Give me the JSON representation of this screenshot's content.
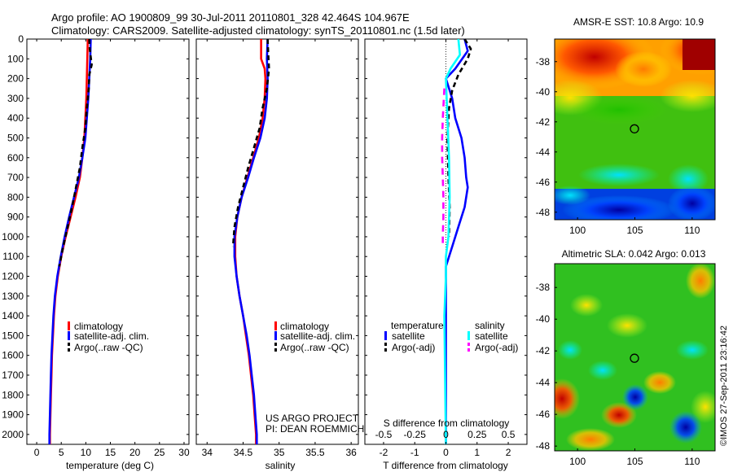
{
  "header": {
    "line1": "Argo profile: AO 1900809_99 30-Jul-2011 20110801_328 42.464S 104.967E",
    "line2": "Climatology: CARS2009. Satellite-adjusted climatology: synTS_20110801.nc (1.5d later)"
  },
  "credits": {
    "project": "US ARGO PROJECT",
    "pi": "PI: DEAN ROEMMICH",
    "stamp": "©IMOS 27-Sep-2011 23:16:42"
  },
  "colors": {
    "climatology": "#ff0000",
    "satellite": "#0000ff",
    "argo": "#000000",
    "salinity_satellite": "#00ffff",
    "salinity_argo": "#ff00ff"
  },
  "chart_data": [
    {
      "type": "line",
      "id": "temperature",
      "xlabel": "temperature (deg C)",
      "xlim": [
        -2,
        31
      ],
      "ylim": [
        0,
        2050
      ],
      "y_reversed": true,
      "xticks": [
        0,
        5,
        10,
        15,
        20,
        25,
        30
      ],
      "yticks": [
        0,
        100,
        200,
        300,
        400,
        500,
        600,
        700,
        800,
        900,
        1000,
        1100,
        1200,
        1300,
        1400,
        1500,
        1600,
        1700,
        1800,
        1900,
        2000
      ],
      "legend": [
        "climatology",
        "satellite-adj. clim.",
        "Argo(..raw -QC)"
      ],
      "series": [
        {
          "name": "climatology",
          "color": "#ff0000",
          "dash": "",
          "points": [
            [
              10.4,
              0
            ],
            [
              10.3,
              100
            ],
            [
              10.2,
              200
            ],
            [
              10.1,
              300
            ],
            [
              9.9,
              400
            ],
            [
              9.7,
              500
            ],
            [
              9.3,
              600
            ],
            [
              8.8,
              700
            ],
            [
              7.9,
              800
            ],
            [
              6.9,
              900
            ],
            [
              5.9,
              1000
            ],
            [
              5.0,
              1100
            ],
            [
              4.3,
              1200
            ],
            [
              3.8,
              1300
            ],
            [
              3.5,
              1400
            ],
            [
              3.3,
              1500
            ],
            [
              3.1,
              1600
            ],
            [
              3.0,
              1700
            ],
            [
              2.9,
              1800
            ],
            [
              2.8,
              1900
            ],
            [
              2.7,
              2000
            ],
            [
              2.7,
              2050
            ]
          ]
        },
        {
          "name": "satellite-adj. clim.",
          "color": "#0000ff",
          "dash": "",
          "points": [
            [
              11.0,
              0
            ],
            [
              10.9,
              100
            ],
            [
              10.7,
              200
            ],
            [
              10.5,
              300
            ],
            [
              10.2,
              400
            ],
            [
              9.9,
              500
            ],
            [
              9.3,
              600
            ],
            [
              8.6,
              700
            ],
            [
              7.6,
              800
            ],
            [
              6.6,
              900
            ],
            [
              5.7,
              1000
            ],
            [
              4.9,
              1100
            ],
            [
              4.2,
              1200
            ],
            [
              3.7,
              1300
            ],
            [
              3.4,
              1400
            ],
            [
              3.2,
              1500
            ],
            [
              3.0,
              1600
            ],
            [
              2.9,
              1700
            ],
            [
              2.8,
              1800
            ],
            [
              2.7,
              1900
            ],
            [
              2.6,
              2000
            ],
            [
              2.6,
              2050
            ]
          ]
        },
        {
          "name": "Argo(..raw -QC)",
          "color": "#000000",
          "dash": "6,4",
          "points": [
            [
              10.7,
              0
            ],
            [
              10.8,
              50
            ],
            [
              11.2,
              130
            ],
            [
              10.7,
              180
            ],
            [
              10.6,
              250
            ],
            [
              10.2,
              350
            ],
            [
              9.9,
              450
            ],
            [
              9.3,
              550
            ],
            [
              8.8,
              650
            ],
            [
              8.0,
              750
            ],
            [
              7.2,
              850
            ],
            [
              6.3,
              950
            ],
            [
              5.4,
              1050
            ],
            [
              4.6,
              1150
            ]
          ]
        }
      ]
    },
    {
      "type": "line",
      "id": "salinity",
      "xlabel": "salinity",
      "xlim": [
        33.85,
        36.1
      ],
      "ylim": [
        0,
        2050
      ],
      "y_reversed": true,
      "xticks": [
        34,
        34.5,
        35,
        35.5,
        36
      ],
      "xticklabels": [
        "34",
        "34.5",
        "35",
        "35.5",
        "36"
      ],
      "legend": [
        "climatology",
        "satellite-adj. clim.",
        "Argo(..raw -QC)"
      ],
      "series": [
        {
          "name": "climatology",
          "color": "#ff0000",
          "dash": "",
          "points": [
            [
              34.75,
              0
            ],
            [
              34.75,
              100
            ],
            [
              34.8,
              150
            ],
            [
              34.81,
              200
            ],
            [
              34.8,
              300
            ],
            [
              34.77,
              400
            ],
            [
              34.72,
              500
            ],
            [
              34.64,
              600
            ],
            [
              34.56,
              700
            ],
            [
              34.48,
              800
            ],
            [
              34.42,
              900
            ],
            [
              34.39,
              1000
            ],
            [
              34.39,
              1100
            ],
            [
              34.41,
              1200
            ],
            [
              34.45,
              1300
            ],
            [
              34.5,
              1400
            ],
            [
              34.54,
              1500
            ],
            [
              34.58,
              1600
            ],
            [
              34.61,
              1700
            ],
            [
              34.64,
              1800
            ],
            [
              34.66,
              1900
            ],
            [
              34.68,
              2000
            ],
            [
              34.68,
              2050
            ]
          ]
        },
        {
          "name": "satellite-adj. clim.",
          "color": "#0000ff",
          "dash": "",
          "points": [
            [
              34.84,
              0
            ],
            [
              34.83,
              100
            ],
            [
              34.84,
              200
            ],
            [
              34.83,
              300
            ],
            [
              34.8,
              400
            ],
            [
              34.74,
              500
            ],
            [
              34.65,
              600
            ],
            [
              34.57,
              700
            ],
            [
              34.48,
              800
            ],
            [
              34.42,
              900
            ],
            [
              34.38,
              1000
            ],
            [
              34.38,
              1100
            ],
            [
              34.41,
              1200
            ],
            [
              34.45,
              1300
            ],
            [
              34.5,
              1400
            ],
            [
              34.55,
              1500
            ],
            [
              34.59,
              1600
            ],
            [
              34.62,
              1700
            ],
            [
              34.65,
              1800
            ],
            [
              34.67,
              1900
            ],
            [
              34.69,
              2000
            ],
            [
              34.69,
              2050
            ]
          ]
        },
        {
          "name": "Argo(..raw -QC)",
          "color": "#000000",
          "dash": "6,4",
          "points": [
            [
              34.84,
              0
            ],
            [
              34.85,
              80
            ],
            [
              34.86,
              150
            ],
            [
              34.83,
              250
            ],
            [
              34.77,
              350
            ],
            [
              34.73,
              450
            ],
            [
              34.65,
              550
            ],
            [
              34.57,
              650
            ],
            [
              34.5,
              750
            ],
            [
              34.43,
              850
            ],
            [
              34.38,
              950
            ],
            [
              34.36,
              1050
            ]
          ]
        }
      ]
    },
    {
      "type": "line",
      "id": "difference",
      "xlabel": "T difference from climatology",
      "xlabel_top": "S difference from climatology",
      "xlim": [
        -2.6,
        2.6
      ],
      "ylim": [
        0,
        2050
      ],
      "y_reversed": true,
      "xticks": [
        -2,
        -1,
        0,
        1,
        2
      ],
      "xticklabels": [
        "-2",
        "-1",
        "0",
        "1",
        "2"
      ],
      "s_ticks": [
        -0.5,
        -0.25,
        0,
        0.25,
        0.5
      ],
      "s_ticklabels": [
        "-0.5",
        "-0.25",
        "0",
        "0.25",
        "0.5"
      ],
      "legend_temperature_title": "temperature",
      "legend_salinity_title": "salinity",
      "legend_temperature": [
        "satellite",
        "Argo(-adj)"
      ],
      "legend_salinity": [
        "satellite",
        "Argo(-adj)"
      ],
      "series": [
        {
          "name": "temperature satellite",
          "color": "#0000ff",
          "dash": "",
          "points": [
            [
              0.6,
              0
            ],
            [
              0.7,
              60
            ],
            [
              0.3,
              150
            ],
            [
              0,
              200
            ],
            [
              0.2,
              300
            ],
            [
              0.3,
              400
            ],
            [
              0.5,
              500
            ],
            [
              0.6,
              600
            ],
            [
              0.65,
              700
            ],
            [
              0.7,
              750
            ],
            [
              0.6,
              850
            ],
            [
              0.4,
              950
            ],
            [
              0.2,
              1050
            ],
            [
              0,
              1150
            ],
            [
              0,
              2050
            ]
          ]
        },
        {
          "name": "temperature Argo(-adj)",
          "color": "#000000",
          "dash": "6,4",
          "points": [
            [
              0.6,
              0
            ],
            [
              0.8,
              50
            ],
            [
              0.7,
              100
            ],
            [
              0.4,
              180
            ],
            [
              0.2,
              260
            ],
            [
              0.1,
              350
            ],
            [
              0.05,
              500
            ],
            [
              0.08,
              700
            ],
            [
              0.12,
              850
            ],
            [
              0.1,
              1000
            ]
          ]
        },
        {
          "name": "salinity satellite",
          "color": "#00ffff",
          "dash": "",
          "points": [
            [
              0.4,
              0
            ],
            [
              0.45,
              80
            ],
            [
              0.15,
              150
            ],
            [
              0,
              200
            ],
            [
              0.05,
              400
            ],
            [
              0.1,
              600
            ],
            [
              0.12,
              800
            ],
            [
              0.08,
              1000
            ],
            [
              0,
              1100
            ],
            [
              0,
              1200
            ],
            [
              -0.05,
              1400
            ],
            [
              0,
              2050
            ]
          ]
        },
        {
          "name": "salinity Argo(-adj)",
          "color": "#ff00ff",
          "dash": "8,6",
          "points": [
            [
              -0.05,
              250
            ],
            [
              -0.1,
              400
            ],
            [
              -0.12,
              500
            ],
            [
              -0.12,
              600
            ],
            [
              -0.1,
              700
            ],
            [
              -0.08,
              800
            ],
            [
              -0.08,
              900
            ],
            [
              -0.1,
              1000
            ],
            [
              -0.1,
              1050
            ]
          ]
        }
      ]
    },
    {
      "type": "heatmap",
      "id": "sst_map",
      "title": "AMSR-E SST: 10.8  Argo: 10.9",
      "xlim": [
        98,
        112
      ],
      "ylim": [
        -48.5,
        -36.5
      ],
      "xticks": [
        100,
        105,
        110
      ],
      "yticks": [
        -38,
        -40,
        -42,
        -44,
        -46,
        -48
      ],
      "marker": [
        104.967,
        -42.464
      ]
    },
    {
      "type": "heatmap",
      "id": "sla_map",
      "title": "Altimetric SLA: 0.042  Argo: 0.013",
      "xlim": [
        98,
        112
      ],
      "ylim": [
        -48.3,
        -36.5
      ],
      "xticks": [
        100,
        105,
        110
      ],
      "yticks": [
        -38,
        -40,
        -42,
        -44,
        -46,
        -48
      ],
      "marker": [
        104.967,
        -42.464
      ]
    }
  ]
}
